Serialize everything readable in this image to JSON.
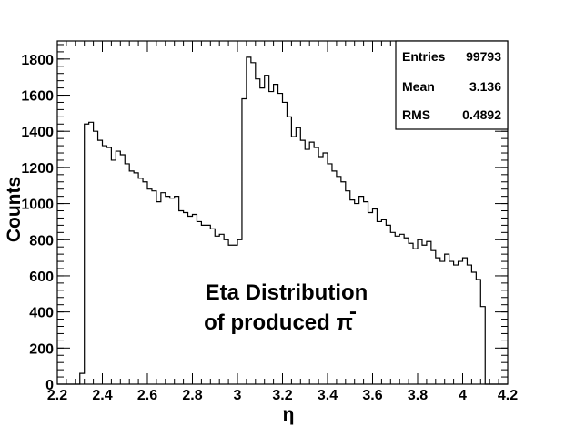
{
  "chart_data": {
    "type": "histogram",
    "title": "",
    "xlabel": "η",
    "ylabel": "Counts",
    "xlim": [
      2.2,
      4.2
    ],
    "ylim": [
      0,
      1900
    ],
    "x_ticks": [
      2.2,
      2.4,
      2.6,
      2.8,
      3,
      3.2,
      3.4,
      3.6,
      3.8,
      4,
      4.2
    ],
    "y_ticks": [
      0,
      200,
      400,
      600,
      800,
      1000,
      1200,
      1400,
      1600,
      1800
    ],
    "bin_width": 0.02,
    "x_start": 2.2,
    "values": [
      0,
      0,
      0,
      0,
      0,
      60,
      1440,
      1450,
      1400,
      1350,
      1320,
      1310,
      1240,
      1290,
      1270,
      1220,
      1180,
      1170,
      1140,
      1120,
      1080,
      1070,
      1010,
      1060,
      1040,
      1030,
      1040,
      960,
      950,
      930,
      940,
      900,
      880,
      880,
      860,
      820,
      830,
      800,
      770,
      770,
      800,
      1580,
      1810,
      1780,
      1690,
      1640,
      1710,
      1620,
      1660,
      1610,
      1560,
      1480,
      1370,
      1420,
      1350,
      1300,
      1340,
      1310,
      1260,
      1280,
      1220,
      1180,
      1150,
      1120,
      1070,
      1020,
      1000,
      1040,
      1010,
      950,
      970,
      900,
      910,
      880,
      840,
      820,
      830,
      810,
      780,
      750,
      800,
      770,
      790,
      740,
      700,
      680,
      720,
      680,
      660,
      680,
      700,
      660,
      620,
      580,
      430,
      0,
      0,
      0,
      0,
      0
    ],
    "stats": {
      "entries_label": "Entries",
      "entries_value": "99793",
      "mean_label": "Mean",
      "mean_value": "3.136",
      "rms_label": "RMS",
      "rms_value": "0.4892"
    },
    "annotation": {
      "line1": "Eta Distribution",
      "line2": "of produced π"
    },
    "colors": {
      "line": "#000000",
      "background": "#ffffff"
    }
  }
}
